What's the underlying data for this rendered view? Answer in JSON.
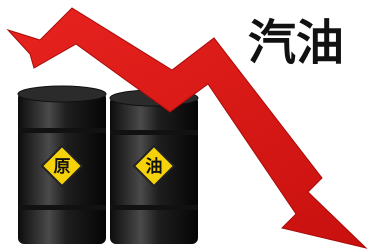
{
  "headline": "汽油",
  "barrels": [
    {
      "label": "原"
    },
    {
      "label": "油"
    }
  ]
}
